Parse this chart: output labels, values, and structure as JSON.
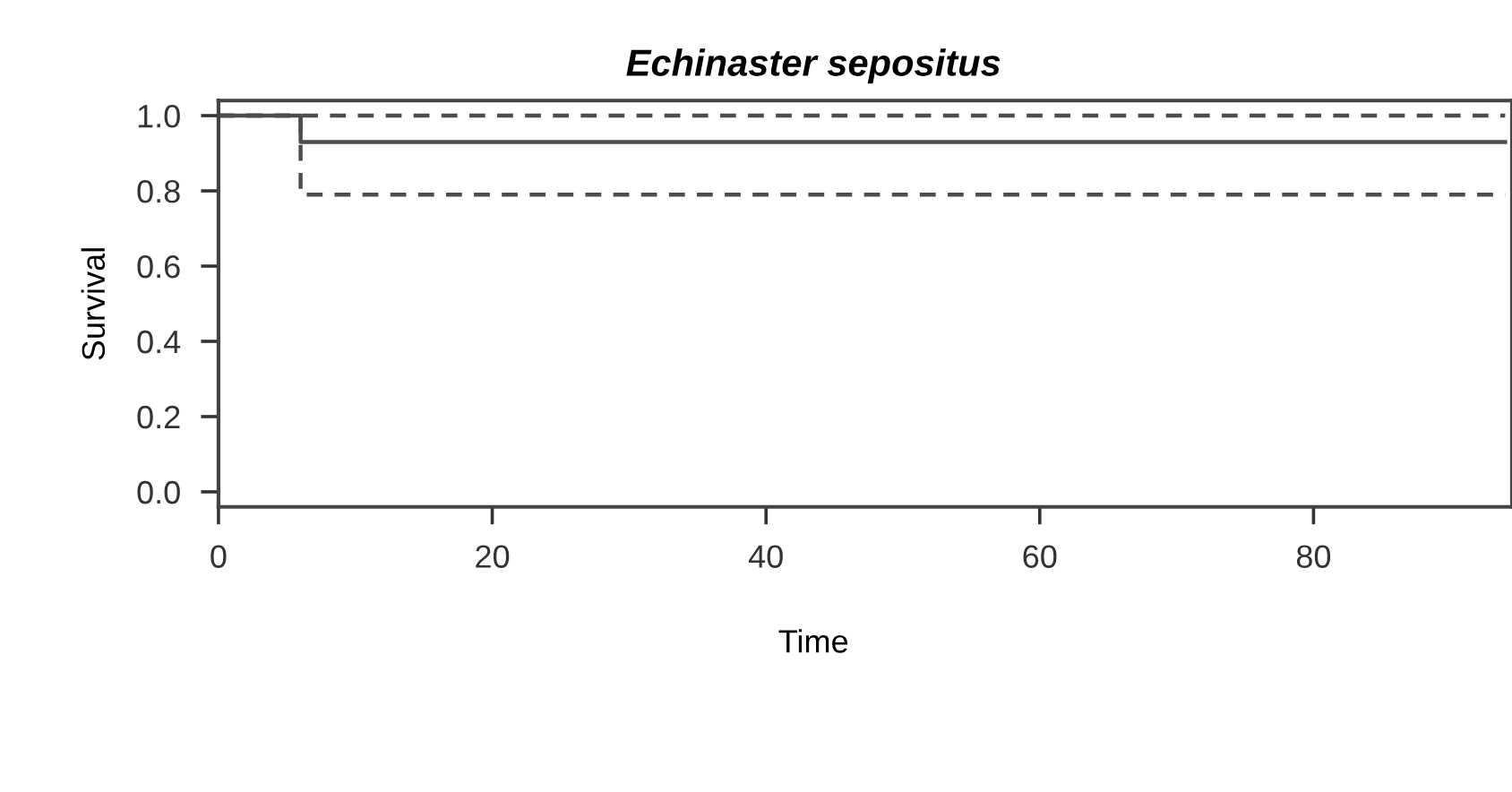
{
  "chart_data": {
    "type": "step",
    "title": "Echinaster sepositus",
    "xlabel": "Time",
    "ylabel": "Survival",
    "x": [
      0,
      6,
      94
    ],
    "series": [
      {
        "color": "#4d4d4d",
        "values": [
          1.0,
          0.93,
          0.93
        ],
        "line_style": "solid"
      },
      {
        "color": "#4d4d4d",
        "values": [
          1.0,
          1.0,
          1.0
        ],
        "line_style": "dashed"
      },
      {
        "color": "#4d4d4d",
        "values": [
          1.0,
          0.79,
          0.79
        ],
        "line_style": "dashed"
      }
    ],
    "xlim": [
      0,
      94.5
    ],
    "ylim": [
      -0.04,
      1.04
    ],
    "xticks": [
      0,
      20,
      40,
      60,
      80
    ],
    "yticks": [
      {
        "value": 0,
        "label": "0.0"
      },
      {
        "value": 0.2,
        "label": "0.2"
      },
      {
        "value": 0.4,
        "label": "0.4"
      },
      {
        "value": 0.6,
        "label": "0.6"
      },
      {
        "value": 0.8,
        "label": "0.8"
      },
      {
        "value": 1,
        "label": "1.0"
      }
    ],
    "grid": false,
    "legend": false
  }
}
